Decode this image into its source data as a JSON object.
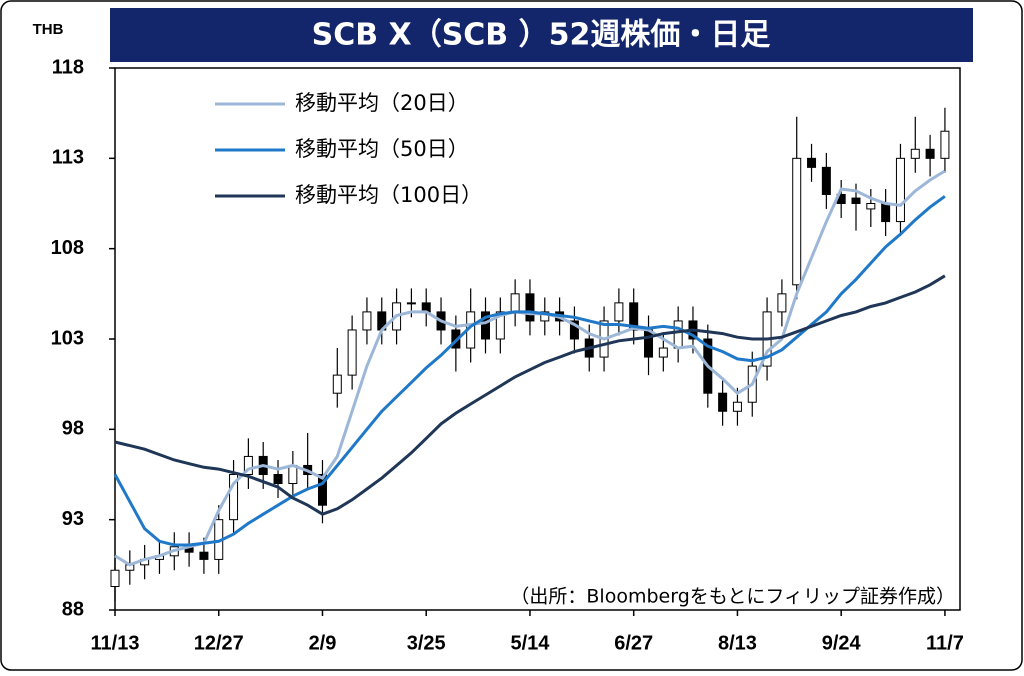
{
  "chart_data": {
    "type": "candlestick",
    "title": "SCB X（SCB ）52週株価・日足",
    "y_unit": "THB",
    "source": "（出所：Bloombergをもとにフィリップ証券作成）",
    "categories": [
      "11/13",
      null,
      null,
      null,
      null,
      null,
      null,
      "12/27",
      null,
      null,
      null,
      null,
      null,
      null,
      "2/9",
      null,
      null,
      null,
      null,
      null,
      null,
      "3/25",
      null,
      null,
      null,
      null,
      null,
      null,
      "5/14",
      null,
      null,
      null,
      null,
      null,
      null,
      "6/27",
      null,
      null,
      null,
      null,
      null,
      null,
      "8/13",
      null,
      null,
      null,
      null,
      null,
      null,
      "9/24",
      null,
      null,
      null,
      null,
      null,
      null,
      "11/7"
    ],
    "ohlc": {
      "open": [
        89.3,
        90.2,
        90.5,
        90.8,
        91,
        91.5,
        91.2,
        90.8,
        93,
        95.5,
        96.5,
        95.5,
        95,
        96,
        95.5,
        100,
        101,
        103.5,
        104.5,
        103.5,
        105,
        105,
        104.5,
        103.5,
        102.5,
        104.5,
        103,
        104.5,
        105.5,
        104,
        104.5,
        104,
        103,
        102,
        104,
        105,
        103.5,
        102,
        102.5,
        104,
        103,
        100,
        99,
        99.5,
        101.5,
        104.5,
        106,
        113,
        112.5,
        111,
        110.8,
        110.2,
        110.5,
        109.5,
        113,
        113.5,
        113
      ],
      "high": [
        91,
        91.3,
        91.6,
        91.8,
        92.3,
        92.3,
        92,
        93.8,
        96.3,
        97.5,
        97.3,
        96.3,
        96.8,
        97.8,
        96.3,
        102.5,
        104.3,
        105.3,
        105.3,
        105.8,
        105.8,
        105.8,
        105.3,
        104.3,
        105.8,
        105.3,
        105.3,
        106.3,
        106.3,
        105.3,
        105.3,
        104.8,
        103.8,
        104.8,
        105.8,
        105.8,
        104.3,
        103.3,
        104.8,
        104.8,
        103.8,
        100.8,
        100.3,
        102.3,
        105.3,
        106.3,
        115.3,
        113.8,
        113.3,
        111.8,
        111.6,
        111.3,
        111.3,
        113.8,
        115.3,
        114.3,
        115.8
      ],
      "low": [
        88.5,
        89.4,
        89.7,
        90,
        90.2,
        90.4,
        90,
        90,
        92.2,
        94.7,
        94.7,
        94.2,
        94.2,
        94.7,
        92.8,
        99.2,
        100.2,
        102.7,
        102.7,
        102.7,
        104.2,
        103.7,
        102.7,
        101.2,
        101.7,
        102.2,
        102.2,
        103.7,
        103.2,
        103.2,
        103.2,
        102.2,
        101.2,
        101.2,
        103.2,
        102.7,
        101,
        101.2,
        101.7,
        102.2,
        99.2,
        98.2,
        98.2,
        98.7,
        100.7,
        103.7,
        105.2,
        111.7,
        110.2,
        109.7,
        109,
        109.2,
        108.7,
        108.7,
        112.2,
        112,
        112.2
      ],
      "close": [
        90.2,
        90.5,
        90.8,
        91,
        91.5,
        91.2,
        90.8,
        93,
        95.5,
        96.5,
        95.5,
        95,
        96,
        95.5,
        93.8,
        101,
        103.5,
        104.5,
        103.5,
        105,
        105,
        104.5,
        103.5,
        102.5,
        104.5,
        103,
        104.5,
        105.5,
        104,
        104.5,
        104,
        103,
        102,
        104,
        105,
        103.5,
        102,
        102.5,
        104,
        103,
        100,
        99,
        99.5,
        101.5,
        104.5,
        105.5,
        113,
        112.5,
        111,
        110.5,
        110.5,
        110.5,
        109.5,
        113,
        113.5,
        113,
        114.5
      ]
    },
    "series": [
      {
        "name": "移動平均（20日）",
        "color": "#9db7d8",
        "values": [
          91,
          90.5,
          90.8,
          91,
          91.3,
          91.5,
          91.7,
          93.5,
          95,
          95.8,
          96,
          95.8,
          96,
          95.7,
          95.3,
          96.5,
          99,
          101.5,
          103.5,
          104.3,
          104.5,
          104.5,
          104,
          103.7,
          103.8,
          103.9,
          104.3,
          104.5,
          104.4,
          104.4,
          104.2,
          103.8,
          103.3,
          103,
          103.3,
          103.6,
          103.5,
          103,
          102.5,
          102.6,
          101.5,
          100.8,
          100,
          100.5,
          102.3,
          103,
          105.5,
          107.5,
          109.5,
          111.3,
          111.2,
          110.8,
          110.5,
          110.4,
          111.2,
          111.8,
          112.3
        ]
      },
      {
        "name": "移動平均（50日）",
        "color": "#1f78c8",
        "values": [
          95.5,
          94,
          92.5,
          91.8,
          91.6,
          91.6,
          91.7,
          91.8,
          92.2,
          92.8,
          93.3,
          93.8,
          94.3,
          94.7,
          95,
          96,
          97,
          98,
          99,
          99.8,
          100.6,
          101.4,
          102.1,
          102.9,
          103.7,
          104.2,
          104.4,
          104.5,
          104.5,
          104.4,
          104.3,
          104.2,
          104,
          103.8,
          103.8,
          103.7,
          103.6,
          103.7,
          103.6,
          103.2,
          102.6,
          102.3,
          101.9,
          101.8,
          102,
          102.4,
          103.1,
          103.8,
          104.5,
          105.5,
          106.3,
          107.2,
          108.1,
          108.8,
          109.6,
          110.3,
          110.9
        ]
      },
      {
        "name": "移動平均（100日）",
        "color": "#1f3657",
        "values": [
          97.3,
          97.1,
          96.9,
          96.6,
          96.3,
          96.1,
          95.9,
          95.8,
          95.6,
          95.4,
          95.1,
          94.8,
          94.2,
          93.8,
          93.3,
          93.6,
          94.1,
          94.7,
          95.3,
          96,
          96.7,
          97.5,
          98.3,
          98.9,
          99.4,
          99.9,
          100.4,
          100.9,
          101.3,
          101.7,
          102,
          102.3,
          102.5,
          102.7,
          102.9,
          103,
          103.1,
          103.3,
          103.4,
          103.5,
          103.4,
          103.3,
          103.1,
          103,
          103,
          103.1,
          103.4,
          103.7,
          104,
          104.3,
          104.5,
          104.8,
          105,
          105.3,
          105.6,
          106,
          106.5
        ]
      }
    ],
    "ylim": [
      88,
      118
    ],
    "yticks": [
      88,
      93,
      98,
      103,
      108,
      113,
      118
    ],
    "grid": false,
    "legend": "upper left"
  }
}
